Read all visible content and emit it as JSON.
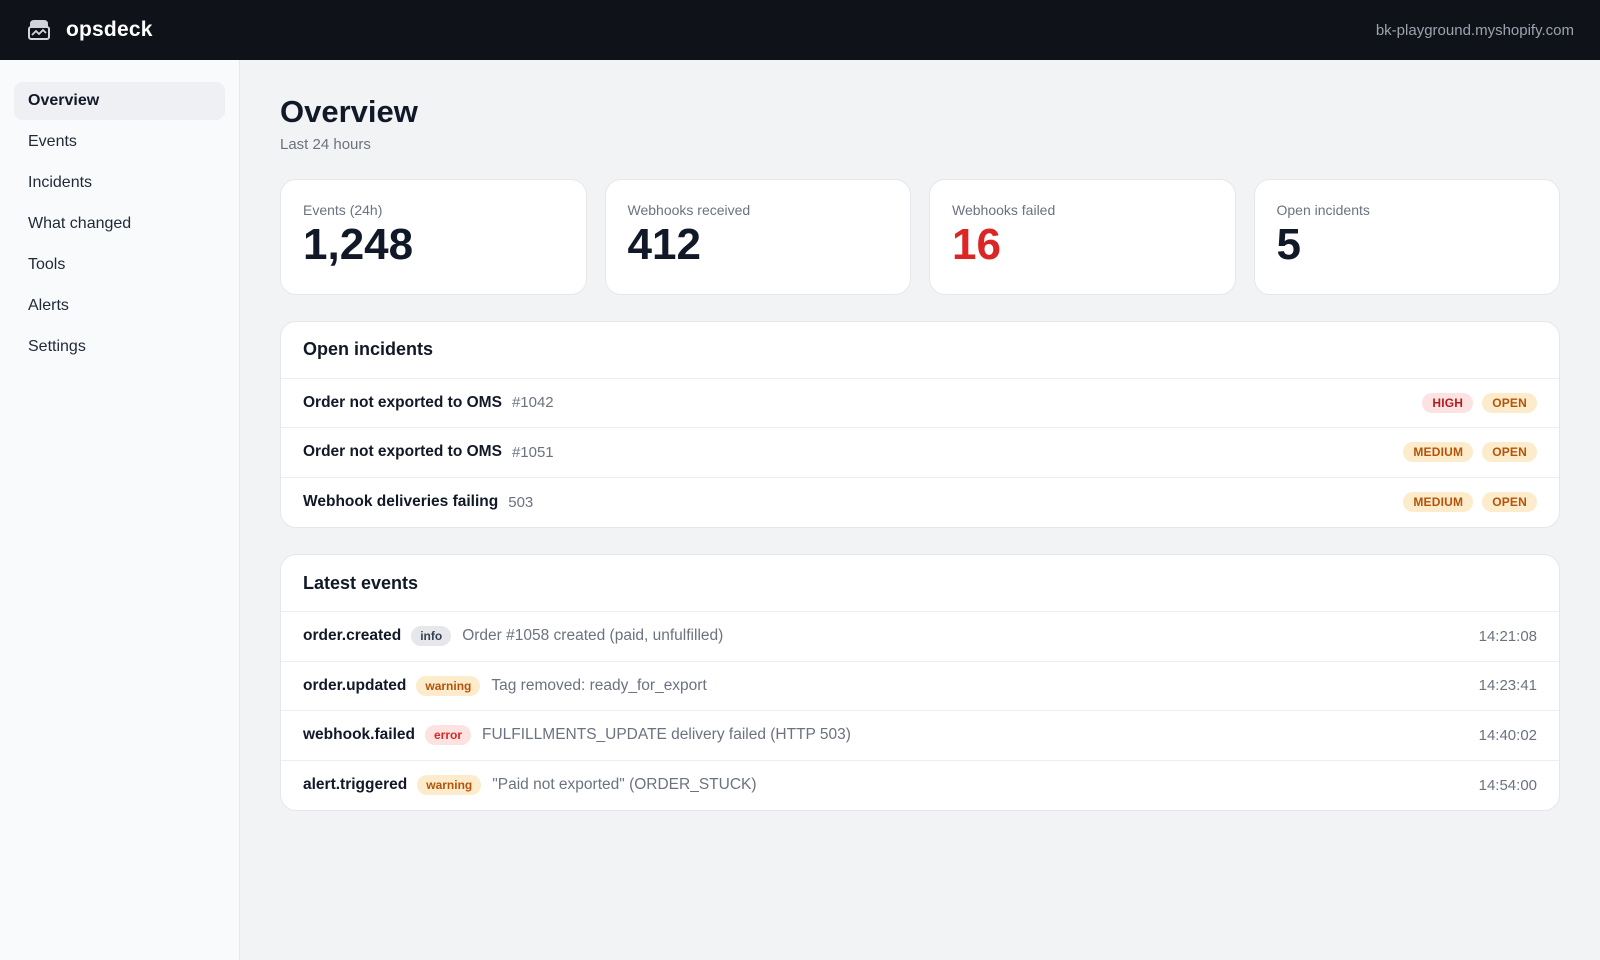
{
  "app": {
    "name": "opsdeck",
    "store_domain": "bk-playground.myshopify.com",
    "logo_icon": "chest-icon"
  },
  "sidebar": {
    "items": [
      {
        "label": "Overview",
        "active": true
      },
      {
        "label": "Events",
        "active": false
      },
      {
        "label": "Incidents",
        "active": false
      },
      {
        "label": "What changed",
        "active": false
      },
      {
        "label": "Tools",
        "active": false
      },
      {
        "label": "Alerts",
        "active": false
      },
      {
        "label": "Settings",
        "active": false
      }
    ]
  },
  "page": {
    "title": "Overview",
    "subtitle": "Last 24 hours"
  },
  "stats": [
    {
      "label": "Events (24h)",
      "value": "1,248"
    },
    {
      "label": "Webhooks received",
      "value": "412"
    },
    {
      "label": "Webhooks failed",
      "value": "16",
      "color": "#dc2626"
    },
    {
      "label": "Open incidents",
      "value": "5"
    }
  ],
  "incidents": {
    "title": "Open incidents",
    "rows": [
      {
        "title": "Order not exported to OMS",
        "ref": "#1042",
        "severity": "HIGH",
        "status": "OPEN"
      },
      {
        "title": "Order not exported to OMS",
        "ref": "#1051",
        "severity": "MEDIUM",
        "status": "OPEN"
      },
      {
        "title": "Webhook deliveries failing",
        "ref": "503",
        "severity": "MEDIUM",
        "status": "OPEN"
      }
    ]
  },
  "events": {
    "title": "Latest events",
    "rows": [
      {
        "type": "order.created",
        "level": "info",
        "message": "Order #1058 created (paid, unfulfilled)",
        "time": "14:21:08"
      },
      {
        "type": "order.updated",
        "level": "warning",
        "message": "Tag removed: ready_for_export",
        "time": "14:23:41"
      },
      {
        "type": "webhook.failed",
        "level": "error",
        "message": "FULFILLMENTS_UPDATE delivery failed (HTTP 503)",
        "time": "14:40:02"
      },
      {
        "type": "alert.triggered",
        "level": "warning",
        "message": "\"Paid not exported\" (ORDER_STUCK)",
        "time": "14:54:00"
      }
    ]
  },
  "colors": {
    "topbar": "#0f1218",
    "danger": "#dc2626",
    "warning_bg": "#fdeccb",
    "warning_fg": "#b45309",
    "error_bg": "#fde2e2"
  }
}
